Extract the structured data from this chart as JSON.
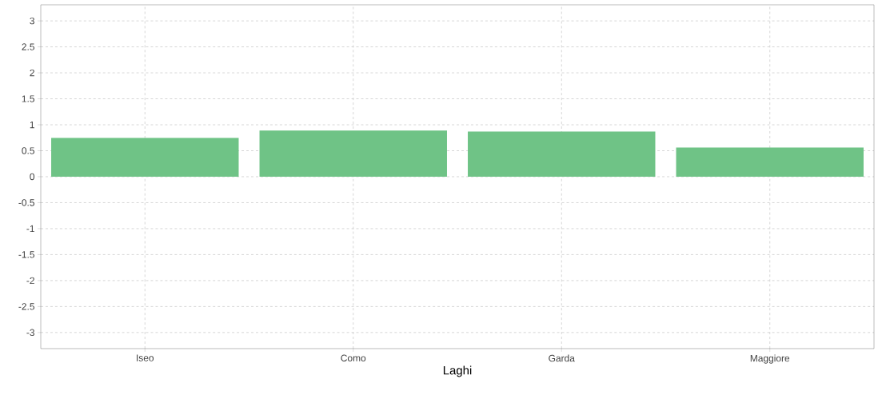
{
  "chart_data": {
    "type": "bar",
    "xlabel": "Laghi",
    "categories": [
      "Iseo",
      "Como",
      "Garda",
      "Maggiore"
    ],
    "values": [
      0.745,
      0.89,
      0.87,
      0.56
    ],
    "color": "#6fc386",
    "ylim": [
      -3.31,
      3.31
    ],
    "yticks": [
      -3,
      -2.5,
      -2,
      -1.5,
      -1,
      -0.5,
      0,
      0.5,
      1,
      1.5,
      2,
      2.5,
      3
    ],
    "grid": true
  }
}
